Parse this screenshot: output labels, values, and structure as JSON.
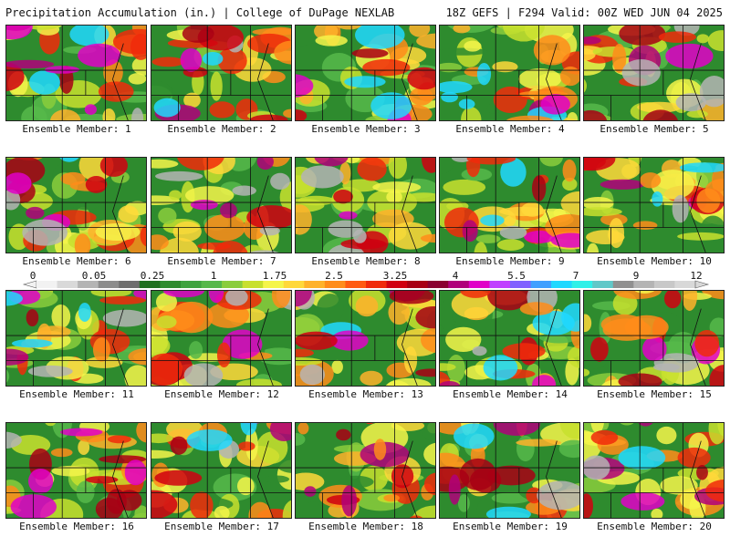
{
  "header": {
    "title": "Precipitation Accumulation (in.) | College of DuPage NEXLAB",
    "run_info": "18Z GEFS | F294 Valid: 00Z WED JUN 04 2025"
  },
  "members": [
    {
      "label": "Ensemble Member: 1"
    },
    {
      "label": "Ensemble Member: 2"
    },
    {
      "label": "Ensemble Member: 3"
    },
    {
      "label": "Ensemble Member: 4"
    },
    {
      "label": "Ensemble Member: 5"
    },
    {
      "label": "Ensemble Member: 6"
    },
    {
      "label": "Ensemble Member: 7"
    },
    {
      "label": "Ensemble Member: 8"
    },
    {
      "label": "Ensemble Member: 9"
    },
    {
      "label": "Ensemble Member: 10"
    },
    {
      "label": "Ensemble Member: 11"
    },
    {
      "label": "Ensemble Member: 12"
    },
    {
      "label": "Ensemble Member: 13"
    },
    {
      "label": "Ensemble Member: 14"
    },
    {
      "label": "Ensemble Member: 15"
    },
    {
      "label": "Ensemble Member: 16"
    },
    {
      "label": "Ensemble Member: 17"
    },
    {
      "label": "Ensemble Member: 18"
    },
    {
      "label": "Ensemble Member: 19"
    },
    {
      "label": "Ensemble Member: 20"
    }
  ],
  "colorbar": {
    "tick_labels": [
      "0",
      "0.05",
      "0.25",
      "1",
      "1.75",
      "2.5",
      "3.25",
      "4",
      "5.5",
      "7",
      "9",
      "12"
    ],
    "colors": [
      "#f2f2f2",
      "#d9d9d9",
      "#b4b4b4",
      "#8c8c8c",
      "#6e6e6e",
      "#1f6f1f",
      "#2e8b2e",
      "#3fa33f",
      "#56b84a",
      "#8acd3c",
      "#c8e02e",
      "#f5f54a",
      "#ffd83a",
      "#ffb22a",
      "#ff8c1a",
      "#ff5a10",
      "#f02a0a",
      "#d00010",
      "#a80014",
      "#8a0030",
      "#b0007a",
      "#e000c8",
      "#c040ff",
      "#8060ff",
      "#40a0ff",
      "#20d8ff",
      "#30f0e8",
      "#60c8c8",
      "#909090",
      "#b4b4b4",
      "#c8c8c8",
      "#d8d8d8"
    ]
  }
}
